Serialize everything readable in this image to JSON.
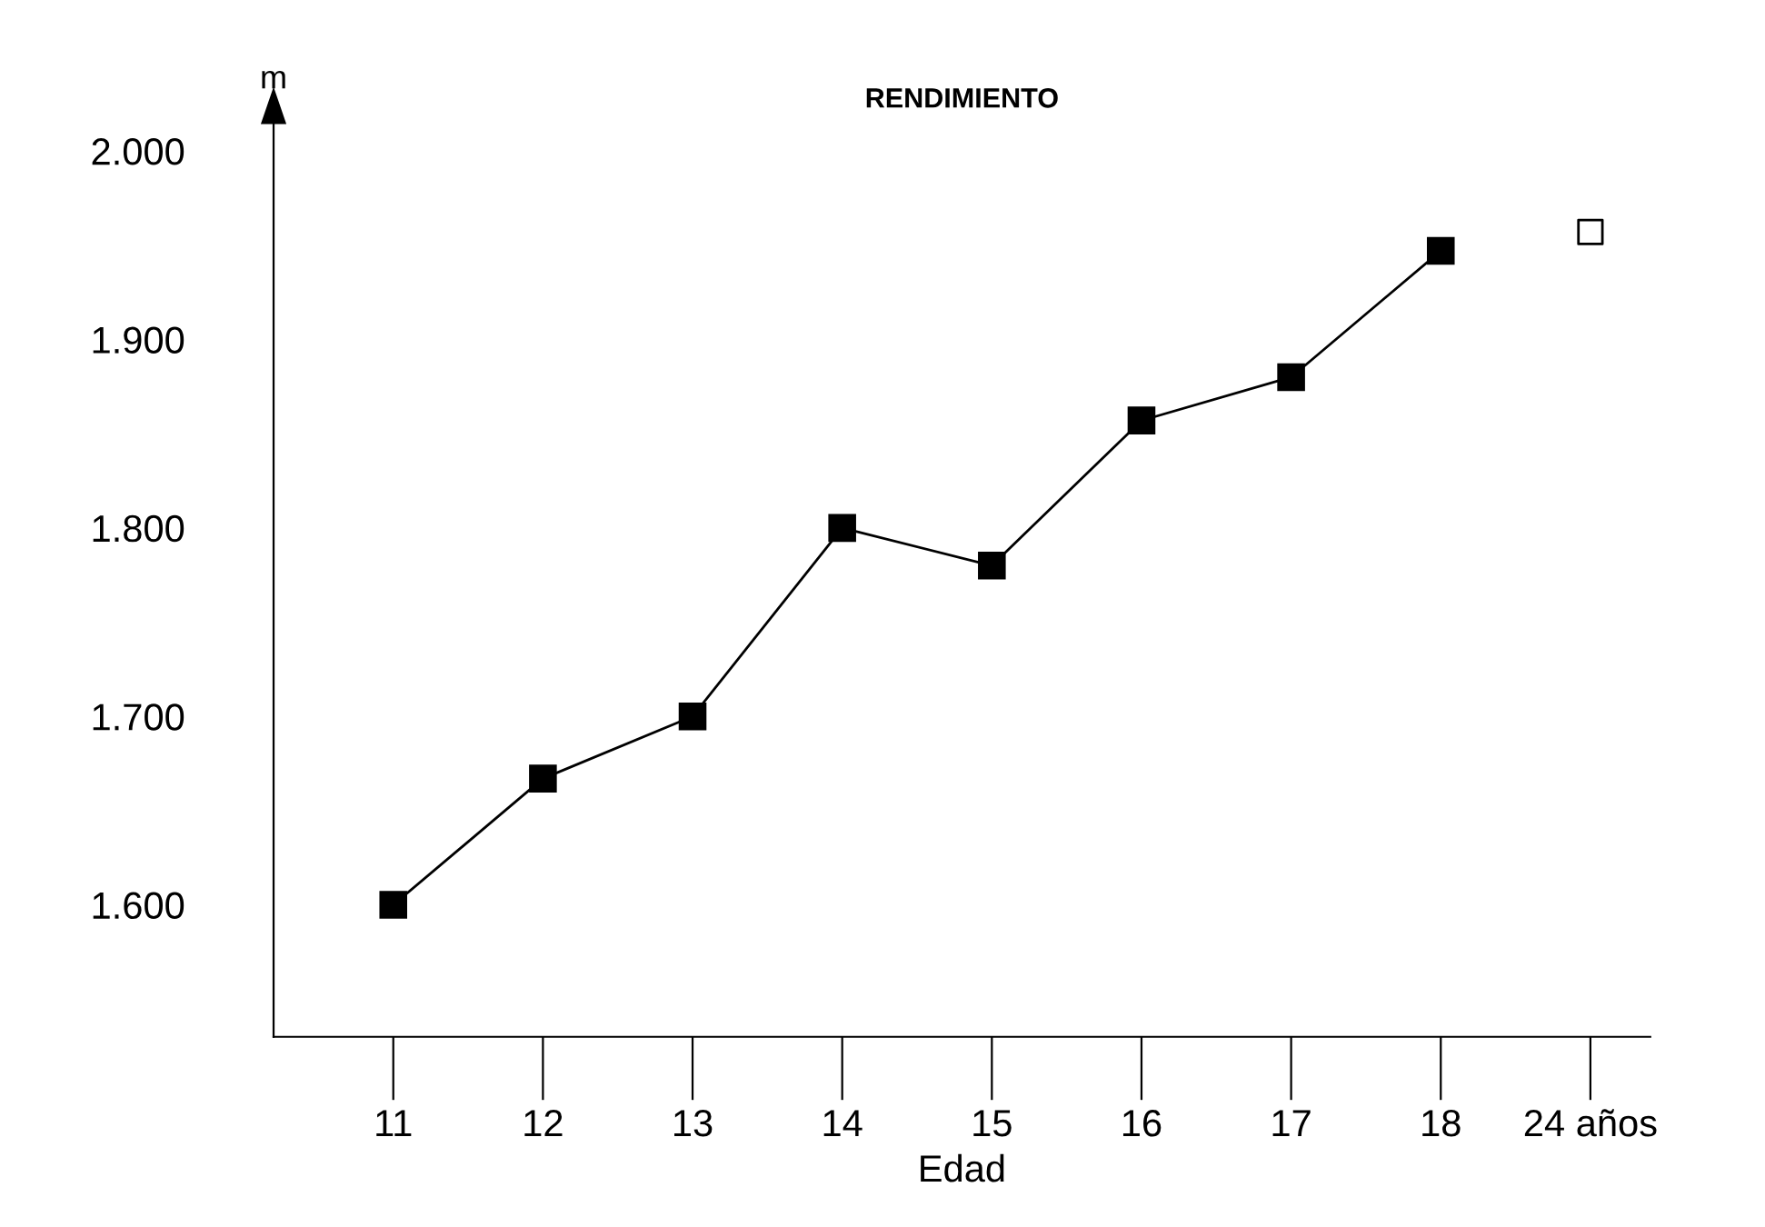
{
  "chart_data": {
    "type": "line",
    "title": "RENDIMIENTO",
    "xlabel": "Edad",
    "ylabel": "m",
    "categories": [
      "11",
      "12",
      "13",
      "14",
      "15",
      "16",
      "17",
      "18",
      "24 años"
    ],
    "series": [
      {
        "color": "#000000",
        "values": [
          1600,
          1667,
          1700,
          1800,
          1780,
          1857,
          1880,
          1947,
          null
        ],
        "marker": "square"
      },
      {
        "type": "scatter",
        "color": "#000000",
        "values": [
          null,
          null,
          null,
          null,
          null,
          null,
          null,
          null,
          1957
        ],
        "marker": "square"
      }
    ],
    "ylim": [
      1530,
      2015
    ],
    "yticks": [
      {
        "value": 1600,
        "label": "1.600"
      },
      {
        "value": 1700,
        "label": "1.700"
      },
      {
        "value": 1800,
        "label": "1.800"
      },
      {
        "value": 1900,
        "label": "1.900"
      },
      {
        "value": 2000,
        "label": "2.000"
      }
    ],
    "grid": false,
    "legend": false
  }
}
